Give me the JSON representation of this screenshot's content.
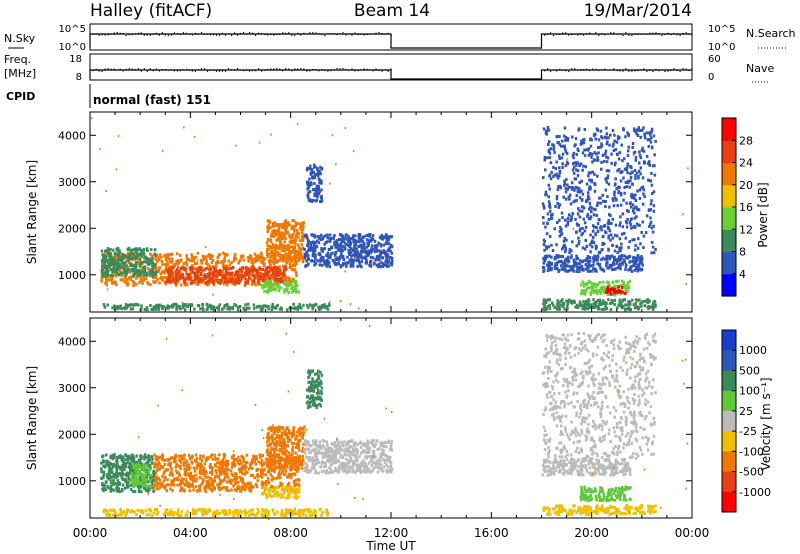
{
  "header": {
    "station": "Halley (fitACF)",
    "beam": "Beam 14",
    "date": "19/Mar/2014"
  },
  "status_panels": {
    "nsky_label": "N.Sky",
    "nsky_ticks": [
      "10^5",
      "10^0"
    ],
    "nsearch_label": "N.Search",
    "nsearch_ticks": [
      "10^5",
      "10^0"
    ],
    "freq_label_1": "Freq.",
    "freq_label_2": "[MHz]",
    "freq_ticks": [
      "18",
      "8"
    ],
    "nave_label": "Nave",
    "nave_ticks": [
      "60",
      "0"
    ],
    "cpid_label": "CPID",
    "cpid_value": "normal (fast) 151"
  },
  "chart_data": [
    {
      "type": "heatmap",
      "name": "power",
      "ylabel": "Slant Range [km]",
      "yticks": [
        "1000",
        "2000",
        "3000",
        "4000"
      ],
      "ylim": [
        200,
        4500
      ],
      "xlim": [
        0,
        24
      ],
      "colorbar": {
        "label": "Power [dB]",
        "ticks": [
          "4",
          "8",
          "12",
          "16",
          "20",
          "24",
          "28"
        ],
        "colors": [
          "#0000ff",
          "#2f55b8",
          "#3a8a5a",
          "#6ad03a",
          "#f0c000",
          "#f07800",
          "#e84010",
          "#ff0000"
        ]
      },
      "regions": [
        {
          "t0": 0.4,
          "t1": 8.2,
          "r0": 800,
          "r1": 1500,
          "color": "#f07800"
        },
        {
          "t0": 3.0,
          "t1": 7.8,
          "r0": 850,
          "r1": 1200,
          "color": "#e84010"
        },
        {
          "t0": 0.4,
          "t1": 2.6,
          "r0": 1000,
          "r1": 1600,
          "color": "#3a8a5a"
        },
        {
          "t0": 7.0,
          "t1": 8.5,
          "r0": 1300,
          "r1": 2200,
          "color": "#f07800"
        },
        {
          "t0": 8.5,
          "t1": 12.0,
          "r0": 1200,
          "r1": 1900,
          "color": "#2f55b8"
        },
        {
          "t0": 8.6,
          "t1": 9.2,
          "r0": 2600,
          "r1": 3400,
          "color": "#2f55b8"
        },
        {
          "t0": 6.8,
          "t1": 8.3,
          "r0": 650,
          "r1": 900,
          "color": "#6ad03a"
        },
        {
          "t0": 0.5,
          "t1": 9.5,
          "r0": 280,
          "r1": 400,
          "color": "#3a8a5a"
        },
        {
          "t0": 18.0,
          "t1": 22.0,
          "r0": 1100,
          "r1": 1450,
          "color": "#2f55b8"
        },
        {
          "t0": 19.5,
          "t1": 21.5,
          "r0": 600,
          "r1": 900,
          "color": "#6ad03a"
        },
        {
          "t0": 20.5,
          "t1": 21.3,
          "r0": 620,
          "r1": 780,
          "color": "#ff0000"
        },
        {
          "t0": 18.0,
          "t1": 22.5,
          "r0": 1500,
          "r1": 4200,
          "color": "#2f55b8"
        },
        {
          "t0": 18.0,
          "t1": 22.5,
          "r0": 280,
          "r1": 500,
          "color": "#3a8a5a"
        }
      ]
    },
    {
      "type": "heatmap",
      "name": "velocity",
      "ylabel": "Slant Range [km]",
      "yticks": [
        "1000",
        "2000",
        "3000",
        "4000"
      ],
      "ylim": [
        200,
        4500
      ],
      "xlim": [
        0,
        24
      ],
      "xlabel": "Time UT",
      "xticks": [
        "00:00",
        "04:00",
        "08:00",
        "12:00",
        "16:00",
        "20:00",
        "00:00"
      ],
      "colorbar": {
        "label": "Velocity [m s⁻¹]",
        "ticks": [
          "1000",
          "500",
          "100",
          "25",
          "-25",
          "-100",
          "-500",
          "-1000"
        ],
        "colors": [
          "#1a3ccf",
          "#2f55b8",
          "#3a8a5a",
          "#5fc83a",
          "#bbbbbb",
          "#f0c000",
          "#f07800",
          "#e84010",
          "#ff0000"
        ]
      },
      "regions": [
        {
          "t0": 2.5,
          "t1": 8.3,
          "r0": 800,
          "r1": 1600,
          "color": "#f07800"
        },
        {
          "t0": 0.4,
          "t1": 2.5,
          "r0": 800,
          "r1": 1600,
          "color": "#3a8a5a"
        },
        {
          "t0": 1.6,
          "t1": 2.4,
          "r0": 900,
          "r1": 1400,
          "color": "#5fc83a"
        },
        {
          "t0": 7.0,
          "t1": 8.5,
          "r0": 1300,
          "r1": 2200,
          "color": "#f07800"
        },
        {
          "t0": 8.5,
          "t1": 12.0,
          "r0": 1200,
          "r1": 1900,
          "color": "#bbbbbb"
        },
        {
          "t0": 8.6,
          "t1": 9.2,
          "r0": 2600,
          "r1": 3400,
          "color": "#3a8a5a"
        },
        {
          "t0": 6.8,
          "t1": 8.3,
          "r0": 650,
          "r1": 900,
          "color": "#f0c000"
        },
        {
          "t0": 0.5,
          "t1": 9.5,
          "r0": 280,
          "r1": 420,
          "color": "#f0c000"
        },
        {
          "t0": 18.0,
          "t1": 21.5,
          "r0": 1150,
          "r1": 1500,
          "color": "#bbbbbb"
        },
        {
          "t0": 19.5,
          "t1": 21.5,
          "r0": 600,
          "r1": 900,
          "color": "#5fc83a"
        },
        {
          "t0": 18.0,
          "t1": 22.5,
          "r0": 1500,
          "r1": 4200,
          "color": "#bbbbbb"
        },
        {
          "t0": 18.0,
          "t1": 22.5,
          "r0": 300,
          "r1": 500,
          "color": "#f0c000"
        }
      ]
    }
  ],
  "coverage": {
    "gaps": [
      [
        12.0,
        18.0
      ]
    ]
  }
}
